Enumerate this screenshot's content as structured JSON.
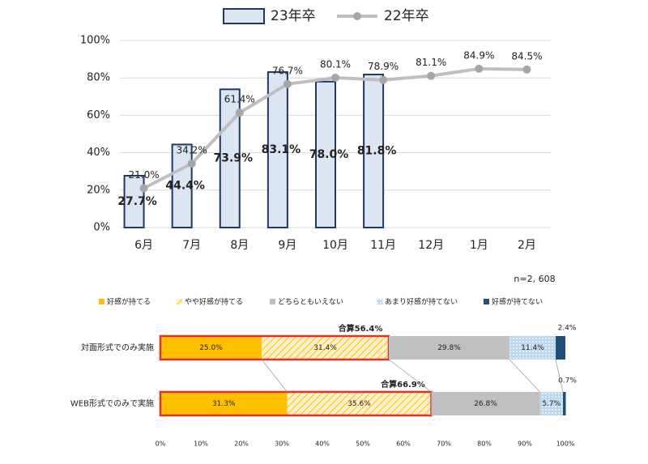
{
  "chart_data": [
    {
      "type": "bar",
      "categories": [
        "6月",
        "7月",
        "8月",
        "9月",
        "10月",
        "11月",
        "12月",
        "1月",
        "2月"
      ],
      "series": [
        {
          "name": "23年卒",
          "type": "bar",
          "color": "#dce6f2",
          "edge_color": "#1f3864",
          "values": [
            27.7,
            44.4,
            73.9,
            83.1,
            78.0,
            81.8,
            null,
            null,
            null
          ],
          "value_labels": [
            "27.7%",
            "44.4%",
            "73.9%",
            "83.1%",
            "78.0%",
            "81.8%",
            null,
            null,
            null
          ]
        },
        {
          "name": "22年卒",
          "type": "line",
          "color": "#bfbfbf",
          "marker_color": "#a6a6a6",
          "values": [
            21.0,
            34.2,
            61.4,
            76.7,
            80.1,
            78.9,
            81.1,
            84.9,
            84.5
          ],
          "value_labels": [
            "21.0%",
            "34.2%",
            "61.4%",
            "76.7%",
            "80.1%",
            "78.9%",
            "81.1%",
            "84.9%",
            "84.5%"
          ]
        }
      ],
      "ylim": [
        0,
        100
      ],
      "yticks": [
        {
          "value": 0,
          "label": "0%"
        },
        {
          "value": 20,
          "label": "20%"
        },
        {
          "value": 40,
          "label": "40%"
        },
        {
          "value": 60,
          "label": "60%"
        },
        {
          "value": 80,
          "label": "80%"
        },
        {
          "value": 100,
          "label": "100%"
        }
      ],
      "grid": true
    },
    {
      "type": "bar",
      "horizontal": true,
      "stacked": true,
      "note": "n=2, 608",
      "categories": [
        "対面形式でのみ実施",
        "WEB形式でのみで実施"
      ],
      "series": [
        {
          "name": "好感が持てる",
          "color": "#ffc000",
          "values": [
            25.0,
            31.3
          ],
          "value_labels": [
            "25.0%",
            "31.3%"
          ]
        },
        {
          "name": "やや好感が持てる",
          "color": "#ffe699",
          "pattern": "hatch",
          "values": [
            31.4,
            35.6
          ],
          "value_labels": [
            "31.4%",
            "35.6%"
          ]
        },
        {
          "name": "どちらともいえない",
          "color": "#bfbfbf",
          "values": [
            29.8,
            26.8
          ],
          "value_labels": [
            "29.8%",
            "26.8%"
          ]
        },
        {
          "name": "あまり好感が持てない",
          "color": "#bdd7ee",
          "pattern": "dots",
          "values": [
            11.4,
            5.7
          ],
          "value_labels": [
            "11.4%",
            "5.7%"
          ]
        },
        {
          "name": "好感が持てない",
          "color": "#1f4e79",
          "values": [
            2.4,
            0.7
          ],
          "value_labels": [
            "2.4%",
            "0.7%"
          ]
        }
      ],
      "sum_labels": [
        "合算56.4%",
        "合算66.9%"
      ],
      "xlim": [
        0,
        100
      ],
      "xticks": [
        {
          "value": 0,
          "label": "0%"
        },
        {
          "value": 10,
          "label": "10%"
        },
        {
          "value": 20,
          "label": "20%"
        },
        {
          "value": 30,
          "label": "30%"
        },
        {
          "value": 40,
          "label": "40%"
        },
        {
          "value": 50,
          "label": "50%"
        },
        {
          "value": 60,
          "label": "60%"
        },
        {
          "value": 70,
          "label": "70%"
        },
        {
          "value": 80,
          "label": "80%"
        },
        {
          "value": 90,
          "label": "90%"
        },
        {
          "value": 100,
          "label": "100%"
        }
      ]
    }
  ]
}
